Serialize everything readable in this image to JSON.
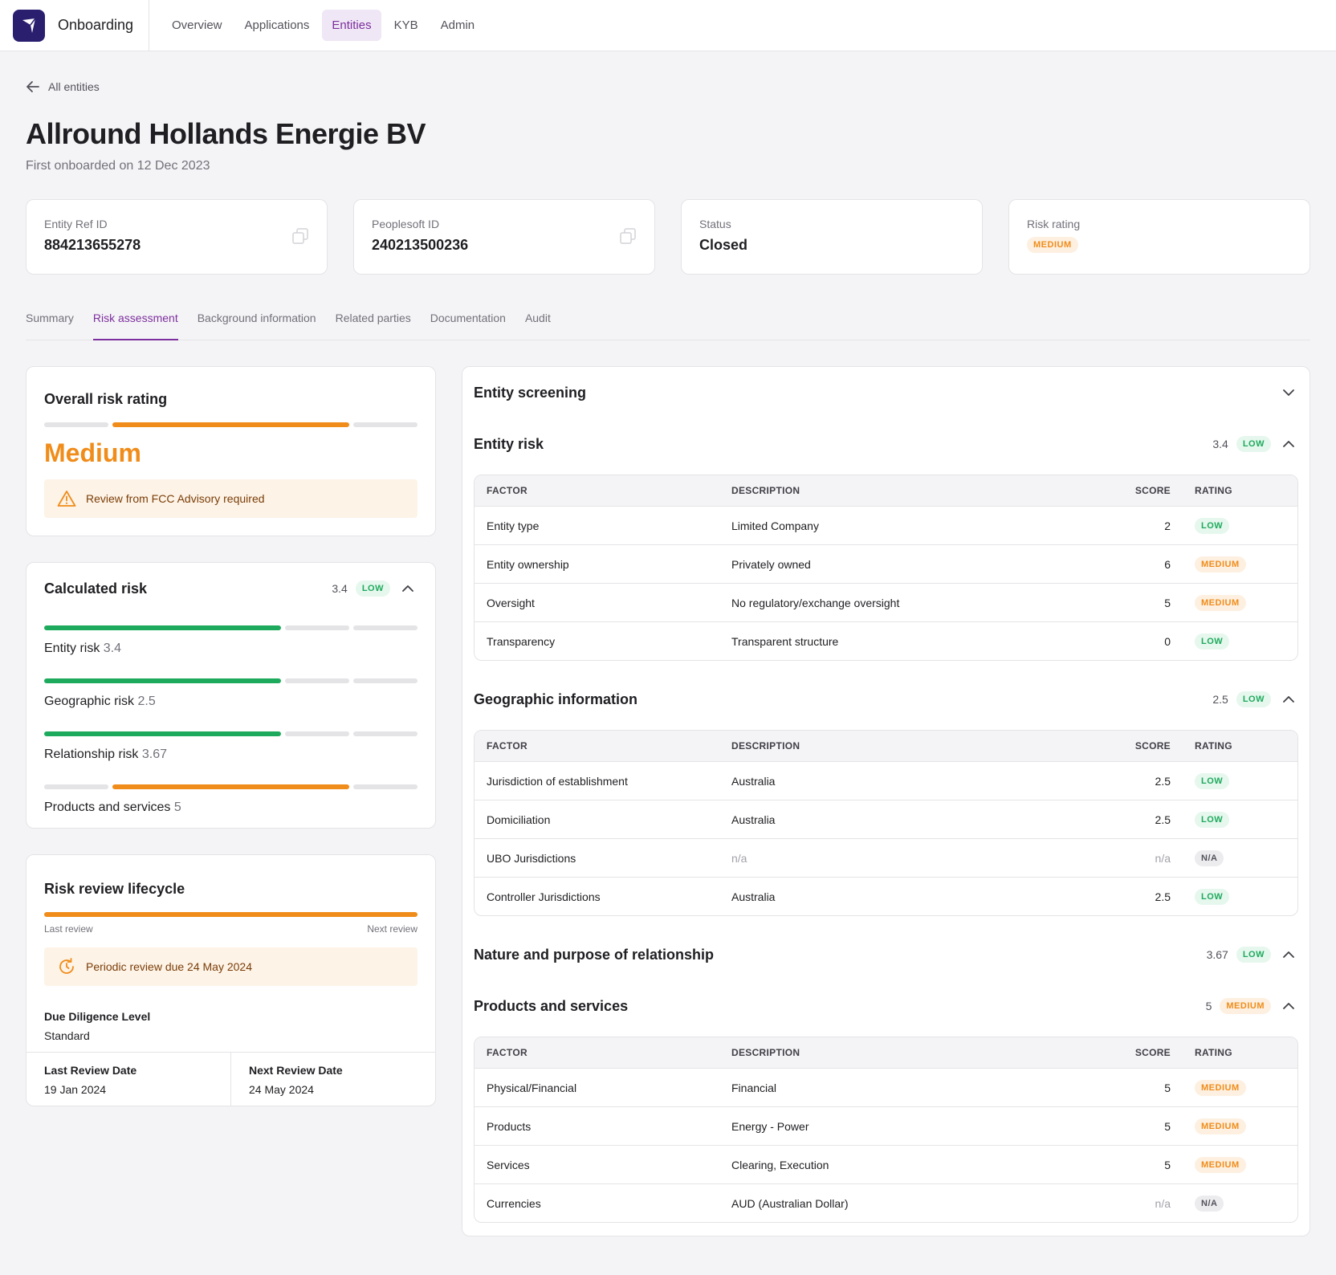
{
  "app": {
    "name": "Onboarding"
  },
  "nav": [
    {
      "label": "Overview"
    },
    {
      "label": "Applications"
    },
    {
      "label": "Entities"
    },
    {
      "label": "KYB"
    },
    {
      "label": "Admin"
    }
  ],
  "back": {
    "label": "All entities"
  },
  "entity": {
    "name": "Allround Hollands Energie BV",
    "subtitle": "First onboarded on 12 Dec 2023"
  },
  "cards": {
    "ref_label": "Entity Ref ID",
    "ref_value": "884213655278",
    "ps_label": "Peoplesoft ID",
    "ps_value": "240213500236",
    "status_label": "Status",
    "status_value": "Closed",
    "risk_label": "Risk rating",
    "risk_value": "MEDIUM"
  },
  "tabs": [
    {
      "label": "Summary"
    },
    {
      "label": "Risk assessment"
    },
    {
      "label": "Background information"
    },
    {
      "label": "Related parties"
    },
    {
      "label": "Documentation"
    },
    {
      "label": "Audit"
    }
  ],
  "overall": {
    "title": "Overall risk rating",
    "rating": "Medium",
    "alert": "Review from FCC Advisory required"
  },
  "calculated": {
    "title": "Calculated risk",
    "score": "3.4",
    "badge": "LOW",
    "items": [
      {
        "label": "Entity risk",
        "value": "3.4"
      },
      {
        "label": "Geographic risk",
        "value": "2.5"
      },
      {
        "label": "Relationship risk",
        "value": "3.67"
      },
      {
        "label": "Products and services",
        "value": "5"
      }
    ]
  },
  "lifecycle": {
    "title": "Risk review lifecycle",
    "last_label": "Last review",
    "next_label": "Next review",
    "alert": "Periodic review due 24 May 2024",
    "dd_label": "Due Diligence Level",
    "dd_value": "Standard",
    "last_date_label": "Last Review Date",
    "last_date_value": "19 Jan 2024",
    "next_date_label": "Next Review Date",
    "next_date_value": "24 May 2024"
  },
  "screening": {
    "title": "Entity screening",
    "headers": {
      "factor": "FACTOR",
      "description": "DESCRIPTION",
      "score": "SCORE",
      "rating": "RATING"
    },
    "entity_risk": {
      "title": "Entity risk",
      "score": "3.4",
      "badge": "LOW",
      "rows": [
        {
          "factor": "Entity type",
          "description": "Limited Company",
          "score": "2",
          "rating": "LOW"
        },
        {
          "factor": "Entity ownership",
          "description": "Privately owned",
          "score": "6",
          "rating": "MEDIUM"
        },
        {
          "factor": "Oversight",
          "description": "No regulatory/exchange oversight",
          "score": "5",
          "rating": "MEDIUM"
        },
        {
          "factor": "Transparency",
          "description": "Transparent structure",
          "score": "0",
          "rating": "LOW"
        }
      ]
    },
    "geo": {
      "title": "Geographic information",
      "score": "2.5",
      "badge": "LOW",
      "rows": [
        {
          "factor": "Jurisdiction of establishment",
          "description": "Australia",
          "score": "2.5",
          "rating": "LOW"
        },
        {
          "factor": "Domiciliation",
          "description": "Australia",
          "score": "2.5",
          "rating": "LOW"
        },
        {
          "factor": "UBO Jurisdictions",
          "description": "n/a",
          "score": "n/a",
          "rating": "N/A"
        },
        {
          "factor": "Controller Jurisdictions",
          "description": "Australia",
          "score": "2.5",
          "rating": "LOW"
        }
      ]
    },
    "nature": {
      "title": "Nature and purpose of relationship",
      "score": "3.67",
      "badge": "LOW"
    },
    "products": {
      "title": "Products and services",
      "score": "5",
      "badge": "MEDIUM",
      "rows": [
        {
          "factor": "Physical/Financial",
          "description": "Financial",
          "score": "5",
          "rating": "MEDIUM"
        },
        {
          "factor": "Products",
          "description": "Energy - Power",
          "score": "5",
          "rating": "MEDIUM"
        },
        {
          "factor": "Services",
          "description": "Clearing, Execution",
          "score": "5",
          "rating": "MEDIUM"
        },
        {
          "factor": "Currencies",
          "description": "AUD (Australian Dollar)",
          "score": "n/a",
          "rating": "N/A"
        }
      ]
    }
  }
}
